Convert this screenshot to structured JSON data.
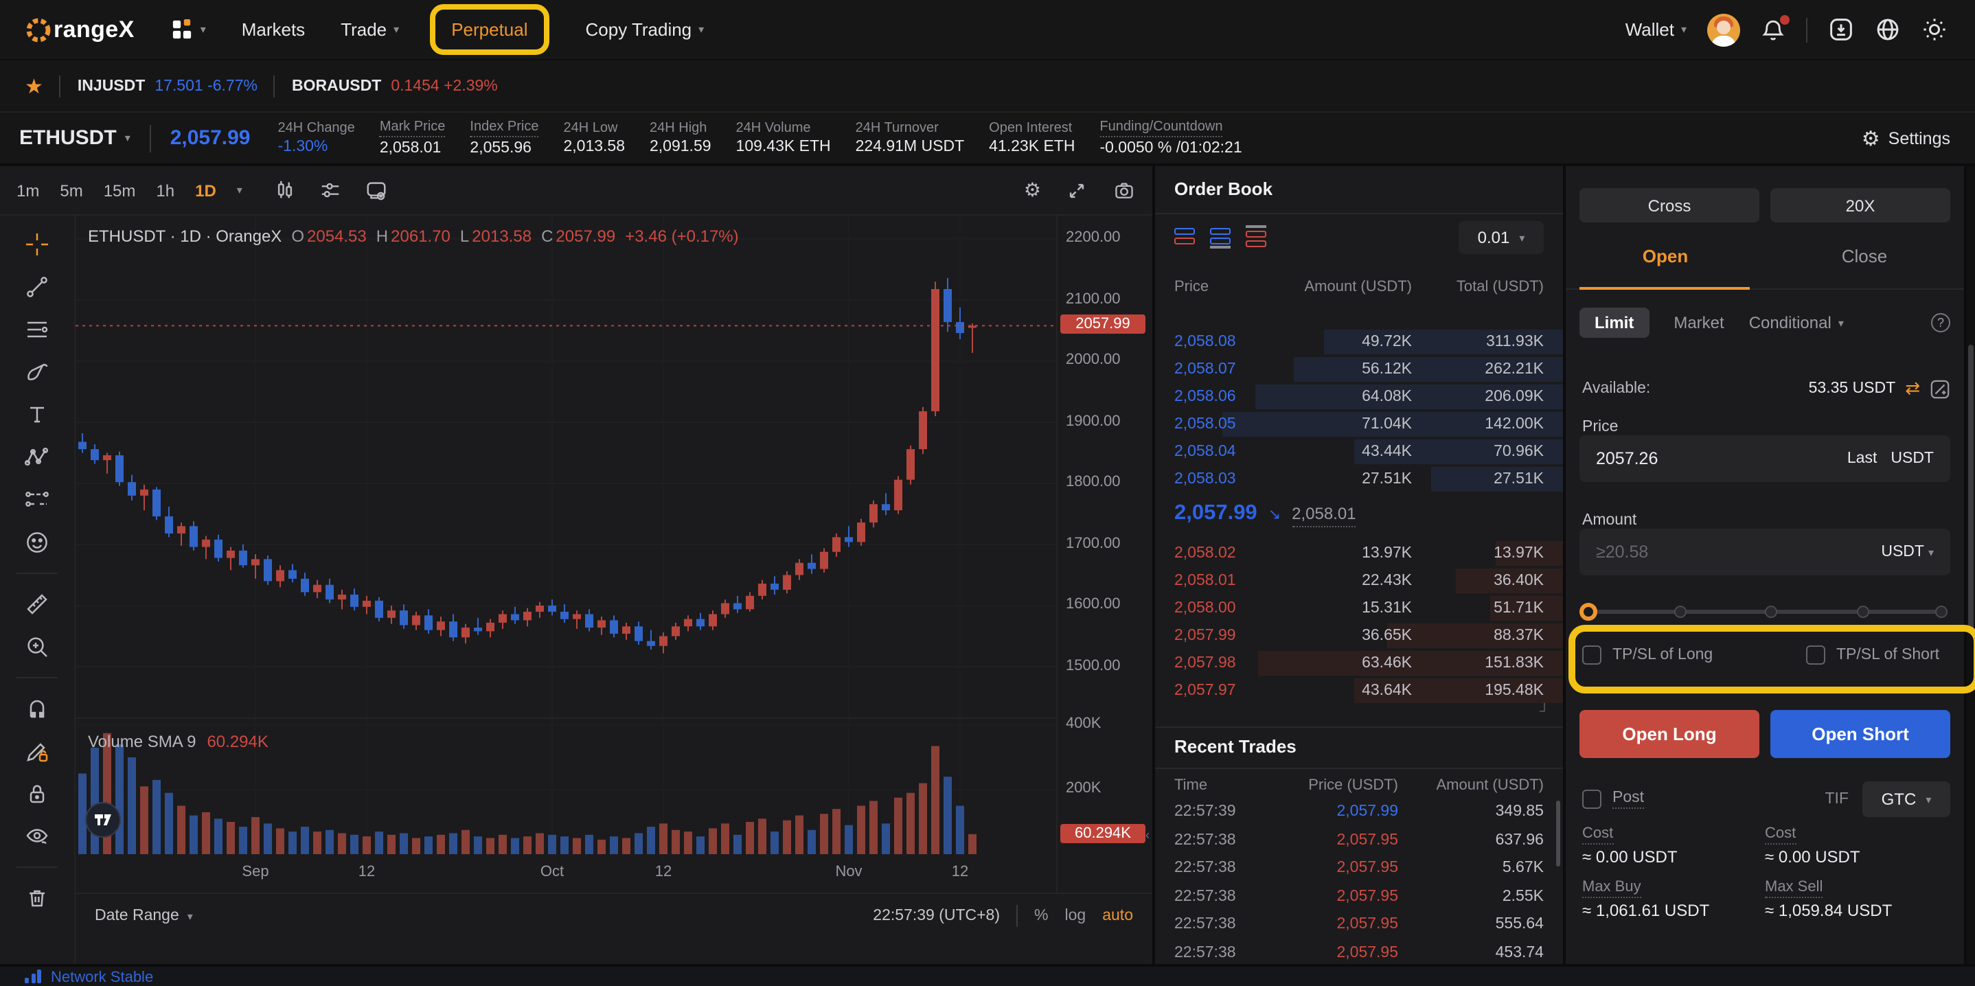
{
  "colors": {
    "accent_orange": "#f0962e",
    "annotation_yellow": "#f2c215",
    "up_red": "#cf4a42",
    "down_blue": "#3a6ff0",
    "open_long_red": "#c44a40",
    "open_short_blue": "#2d62d8"
  },
  "nav": {
    "logo_text": "rangeX",
    "items": [
      {
        "label": "Markets"
      },
      {
        "label": "Trade"
      },
      {
        "label": "Perpetual"
      },
      {
        "label": "Copy Trading"
      }
    ],
    "wallet_label": "Wallet"
  },
  "ticker": {
    "pairs": [
      {
        "symbol": "INJUSDT",
        "price": "17.501",
        "change": "-6.77%",
        "color": "blue"
      },
      {
        "symbol": "BORAUSDT",
        "price": "0.1454",
        "change": "+2.39%",
        "color": "red"
      }
    ]
  },
  "symbol_bar": {
    "symbol": "ETHUSDT",
    "last_price": "2,057.99",
    "stats": [
      {
        "label": "24H Change",
        "value": "-1.30%",
        "value_color": "blue",
        "underline": false
      },
      {
        "label": "Mark Price",
        "value": "2,058.01",
        "underline": true
      },
      {
        "label": "Index Price",
        "value": "2,055.96",
        "underline": true
      },
      {
        "label": "24H Low",
        "value": "2,013.58",
        "underline": false
      },
      {
        "label": "24H High",
        "value": "2,091.59",
        "underline": false
      },
      {
        "label": "24H Volume",
        "value": "109.43K ETH",
        "underline": false
      },
      {
        "label": "24H Turnover",
        "value": "224.91M USDT",
        "underline": false
      },
      {
        "label": "Open Interest",
        "value": "41.23K ETH",
        "underline": false
      },
      {
        "label": "Funding/Countdown",
        "value": "-0.0050 % /01:02:21",
        "underline": true
      }
    ],
    "settings_label": "Settings"
  },
  "chart": {
    "timeframes": [
      "1m",
      "5m",
      "15m",
      "1h",
      "1D"
    ],
    "active_timeframe": "1D",
    "legend": {
      "title": "ETHUSDT · 1D · OrangeX",
      "ohlc": [
        {
          "k": "O",
          "v": "2054.53"
        },
        {
          "k": "H",
          "v": "2061.70"
        },
        {
          "k": "L",
          "v": "2013.58"
        },
        {
          "k": "C",
          "v": "2057.99"
        }
      ],
      "change": "+3.46 (+0.17%)"
    },
    "volume_legend": {
      "title": "Volume SMA 9",
      "value": "60.294K"
    },
    "price_ticks": [
      "2200.00",
      "2100.00",
      "2000.00",
      "1900.00",
      "1800.00",
      "1700.00",
      "1600.00",
      "1500.00"
    ],
    "volume_ticks": [
      "400K",
      "200K"
    ],
    "price_badge": "2057.99",
    "volume_badge": "60.294K",
    "date_ticks": [
      {
        "label": "Sep",
        "index": 14
      },
      {
        "label": "12",
        "index": 23
      },
      {
        "label": "Oct",
        "index": 38
      },
      {
        "label": "12",
        "index": 47
      },
      {
        "label": "Nov",
        "index": 62
      },
      {
        "label": "12",
        "index": 71
      }
    ],
    "bottom": {
      "date_range": "Date Range",
      "clock": "22:57:39 (UTC+8)",
      "percent": "%",
      "log": "log",
      "auto": "auto"
    },
    "tools": [
      "crosshair",
      "trend-line",
      "fib-retracement",
      "brush",
      "text",
      "xabcd-pattern",
      "long-short-position",
      "emoji",
      "sep",
      "ruler",
      "zoom-in",
      "sep",
      "magnet",
      "draw-lock",
      "lock-all",
      "hide-all",
      "sep",
      "remove-all"
    ]
  },
  "chart_data": {
    "type": "candlestick",
    "symbol": "ETHUSDT",
    "interval": "1D",
    "ylim": [
      1480,
      2230
    ],
    "volume_unit": "K",
    "candles": [
      [
        1868,
        1882,
        1850,
        1856,
        250
      ],
      [
        1856,
        1864,
        1832,
        1838,
        330
      ],
      [
        1838,
        1850,
        1816,
        1846,
        375
      ],
      [
        1846,
        1852,
        1796,
        1802,
        340
      ],
      [
        1802,
        1814,
        1772,
        1780,
        300
      ],
      [
        1780,
        1798,
        1756,
        1790,
        210
      ],
      [
        1790,
        1794,
        1740,
        1746,
        230
      ],
      [
        1746,
        1762,
        1712,
        1718,
        190
      ],
      [
        1718,
        1736,
        1698,
        1730,
        150
      ],
      [
        1730,
        1738,
        1690,
        1696,
        120
      ],
      [
        1696,
        1714,
        1676,
        1708,
        130
      ],
      [
        1708,
        1716,
        1672,
        1678,
        110
      ],
      [
        1678,
        1696,
        1658,
        1690,
        100
      ],
      [
        1690,
        1700,
        1662,
        1666,
        85
      ],
      [
        1666,
        1684,
        1644,
        1676,
        115
      ],
      [
        1676,
        1682,
        1634,
        1640,
        95
      ],
      [
        1640,
        1666,
        1630,
        1658,
        80
      ],
      [
        1658,
        1668,
        1638,
        1644,
        70
      ],
      [
        1644,
        1654,
        1616,
        1622,
        85
      ],
      [
        1622,
        1642,
        1612,
        1634,
        70
      ],
      [
        1634,
        1644,
        1604,
        1610,
        75
      ],
      [
        1610,
        1626,
        1594,
        1618,
        65
      ],
      [
        1618,
        1628,
        1592,
        1598,
        60
      ],
      [
        1598,
        1616,
        1586,
        1608,
        55
      ],
      [
        1608,
        1614,
        1574,
        1580,
        70
      ],
      [
        1580,
        1600,
        1570,
        1592,
        60
      ],
      [
        1592,
        1602,
        1562,
        1568,
        65
      ],
      [
        1568,
        1590,
        1560,
        1584,
        50
      ],
      [
        1584,
        1594,
        1554,
        1560,
        55
      ],
      [
        1560,
        1582,
        1550,
        1574,
        60
      ],
      [
        1574,
        1586,
        1542,
        1548,
        65
      ],
      [
        1548,
        1570,
        1538,
        1564,
        75
      ],
      [
        1564,
        1580,
        1552,
        1558,
        55
      ],
      [
        1558,
        1578,
        1548,
        1572,
        50
      ],
      [
        1572,
        1592,
        1562,
        1586,
        60
      ],
      [
        1586,
        1598,
        1570,
        1576,
        50
      ],
      [
        1576,
        1596,
        1566,
        1590,
        55
      ],
      [
        1590,
        1606,
        1580,
        1600,
        65
      ],
      [
        1600,
        1610,
        1584,
        1590,
        60
      ],
      [
        1590,
        1602,
        1572,
        1578,
        55
      ],
      [
        1578,
        1592,
        1562,
        1586,
        50
      ],
      [
        1586,
        1594,
        1558,
        1564,
        60
      ],
      [
        1564,
        1582,
        1552,
        1576,
        45
      ],
      [
        1576,
        1584,
        1548,
        1554,
        55
      ],
      [
        1554,
        1572,
        1544,
        1566,
        50
      ],
      [
        1566,
        1574,
        1536,
        1542,
        65
      ],
      [
        1542,
        1560,
        1528,
        1534,
        85
      ],
      [
        1534,
        1556,
        1522,
        1550,
        95
      ],
      [
        1550,
        1572,
        1544,
        1566,
        75
      ],
      [
        1566,
        1584,
        1558,
        1578,
        70
      ],
      [
        1578,
        1588,
        1560,
        1566,
        55
      ],
      [
        1566,
        1592,
        1560,
        1586,
        80
      ],
      [
        1586,
        1610,
        1580,
        1604,
        95
      ],
      [
        1604,
        1616,
        1588,
        1594,
        60
      ],
      [
        1594,
        1622,
        1590,
        1616,
        100
      ],
      [
        1616,
        1642,
        1610,
        1636,
        110
      ],
      [
        1636,
        1648,
        1618,
        1626,
        70
      ],
      [
        1626,
        1656,
        1620,
        1650,
        105
      ],
      [
        1650,
        1676,
        1642,
        1670,
        120
      ],
      [
        1670,
        1684,
        1652,
        1660,
        75
      ],
      [
        1660,
        1694,
        1654,
        1688,
        125
      ],
      [
        1688,
        1718,
        1680,
        1712,
        140
      ],
      [
        1712,
        1730,
        1696,
        1704,
        90
      ],
      [
        1704,
        1742,
        1698,
        1736,
        150
      ],
      [
        1736,
        1772,
        1728,
        1766,
        165
      ],
      [
        1766,
        1784,
        1748,
        1756,
        95
      ],
      [
        1756,
        1812,
        1750,
        1806,
        175
      ],
      [
        1806,
        1862,
        1798,
        1856,
        190
      ],
      [
        1856,
        1925,
        1848,
        1918,
        220
      ],
      [
        1918,
        2130,
        1910,
        2118,
        335
      ],
      [
        2118,
        2136,
        2048,
        2064,
        240
      ],
      [
        2064,
        2088,
        2036,
        2046,
        150
      ],
      [
        2054.53,
        2061.7,
        2013.58,
        2057.99,
        62
      ]
    ]
  },
  "order_book": {
    "title": "Order Book",
    "precision": "0.01",
    "columns": [
      "Price",
      "Amount (USDT)",
      "Total (USDT)"
    ],
    "asks": [
      {
        "price": "2,058.08",
        "amount": "49.72K",
        "total": "311.93K"
      },
      {
        "price": "2,058.07",
        "amount": "56.12K",
        "total": "262.21K"
      },
      {
        "price": "2,058.06",
        "amount": "64.08K",
        "total": "206.09K"
      },
      {
        "price": "2,058.05",
        "amount": "71.04K",
        "total": "142.00K"
      },
      {
        "price": "2,058.04",
        "amount": "43.44K",
        "total": "70.96K"
      },
      {
        "price": "2,058.03",
        "amount": "27.51K",
        "total": "27.51K"
      }
    ],
    "last_price": "2,057.99",
    "last_arrow": "↘",
    "mark_price": "2,058.01",
    "bids": [
      {
        "price": "2,058.02",
        "amount": "13.97K",
        "total": "13.97K"
      },
      {
        "price": "2,058.01",
        "amount": "22.43K",
        "total": "36.40K"
      },
      {
        "price": "2,058.00",
        "amount": "15.31K",
        "total": "51.71K"
      },
      {
        "price": "2,057.99",
        "amount": "36.65K",
        "total": "88.37K"
      },
      {
        "price": "2,057.98",
        "amount": "63.46K",
        "total": "151.83K"
      },
      {
        "price": "2,057.97",
        "amount": "43.64K",
        "total": "195.48K"
      }
    ]
  },
  "recent_trades": {
    "title": "Recent Trades",
    "columns": [
      "Time",
      "Price (USDT)",
      "Amount (USDT)"
    ],
    "rows": [
      {
        "time": "22:57:39",
        "price": "2,057.99",
        "amount": "349.85",
        "color": "blue"
      },
      {
        "time": "22:57:38",
        "price": "2,057.95",
        "amount": "637.96",
        "color": "red"
      },
      {
        "time": "22:57:38",
        "price": "2,057.95",
        "amount": "5.67K",
        "color": "red"
      },
      {
        "time": "22:57:38",
        "price": "2,057.95",
        "amount": "2.55K",
        "color": "red"
      },
      {
        "time": "22:57:38",
        "price": "2,057.95",
        "amount": "555.64",
        "color": "red"
      },
      {
        "time": "22:57:38",
        "price": "2,057.95",
        "amount": "453.74",
        "color": "red"
      }
    ]
  },
  "trade_panel": {
    "margin_mode": "Cross",
    "leverage": "20X",
    "tabs": [
      "Open",
      "Close"
    ],
    "active_tab": "Open",
    "order_types": [
      "Limit",
      "Market",
      "Conditional"
    ],
    "active_order_type": "Limit",
    "available_label": "Available:",
    "available_value": "53.35 USDT",
    "price_label": "Price",
    "price_value": "2057.26",
    "price_last_label": "Last",
    "price_unit": "USDT",
    "amount_label": "Amount",
    "amount_placeholder": "≥20.58",
    "amount_unit": "USDT",
    "tpsl_long_label": "TP/SL of Long",
    "tpsl_short_label": "TP/SL of Short",
    "open_long_label": "Open Long",
    "open_short_label": "Open Short",
    "post_label": "Post",
    "tif_label": "TIF",
    "tif_value": "GTC",
    "cost_long_label": "Cost",
    "cost_long_value": "≈ 0.00 USDT",
    "cost_short_label": "Cost",
    "cost_short_value": "≈ 0.00 USDT",
    "max_buy_label": "Max Buy",
    "max_buy_value": "≈ 1,061.61 USDT",
    "max_sell_label": "Max Sell",
    "max_sell_value": "≈ 1,059.84 USDT"
  },
  "status_bar": {
    "network": "Network Stable"
  }
}
